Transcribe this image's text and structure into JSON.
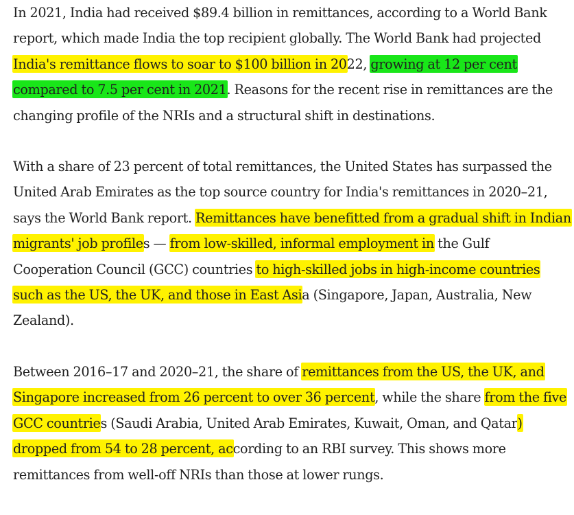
{
  "colors": {
    "highlight_yellow": "#fff200",
    "highlight_green": "#19e619",
    "text": "#1f1f1f",
    "background": "#ffffff"
  },
  "paragraphs": [
    {
      "segments": [
        {
          "text": "In 2021, India had received $89.4 billion in remittances, according to a World Bank report, which made India the top recipient globally. The World Bank had projected ",
          "hl": "none"
        },
        {
          "text": "India's remittance flows to soar to $100 billion in 20",
          "hl": "yellow"
        },
        {
          "text": "22, ",
          "hl": "none"
        },
        {
          "text": "growing at 12 per cent compared to 7.5 per cent in 2021",
          "hl": "green"
        },
        {
          "text": ". Reasons for the recent rise in remittances are the changing profile of the NRIs and a structural shift in destinations.",
          "hl": "none"
        }
      ]
    },
    {
      "segments": [
        {
          "text": "With a share of 23 percent of total remittances, the United States has surpassed the United Arab Emirates as the top source country for India's remittances in 2020–21, says the World Bank report. ",
          "hl": "none"
        },
        {
          "text": "Remittances have benefitted from a gradual shift in Indian migrants' job profile",
          "hl": "yellow"
        },
        {
          "text": "s — ",
          "hl": "none"
        },
        {
          "text": "from low-skilled, informal employment in",
          "hl": "yellow"
        },
        {
          "text": " the Gulf Cooperation Council (GCC) countries ",
          "hl": "none"
        },
        {
          "text": "to high-skilled jobs in high-income countries such as the US, the UK, and those in East Asi",
          "hl": "yellow"
        },
        {
          "text": "a (Singapore, Japan, Australia, New Zealand).",
          "hl": "none"
        }
      ]
    },
    {
      "segments": [
        {
          "text": "Between 2016–17 and 2020–21, the share of ",
          "hl": "none"
        },
        {
          "text": "remittances from the US, the UK, and Singapore increased from 26 percent to over 36 percent",
          "hl": "yellow"
        },
        {
          "text": ", while the share ",
          "hl": "none"
        },
        {
          "text": "from the five GCC countrie",
          "hl": "yellow"
        },
        {
          "text": "s (Saudi Arabia, United Arab Emirates, Kuwait, Oman, and Qatar",
          "hl": "none"
        },
        {
          "text": ") dropped from 54 to 28 percent, ac",
          "hl": "yellow"
        },
        {
          "text": "cording to an RBI survey. This shows more remittances from well-off NRIs than those at lower rungs.",
          "hl": "none"
        }
      ]
    }
  ]
}
